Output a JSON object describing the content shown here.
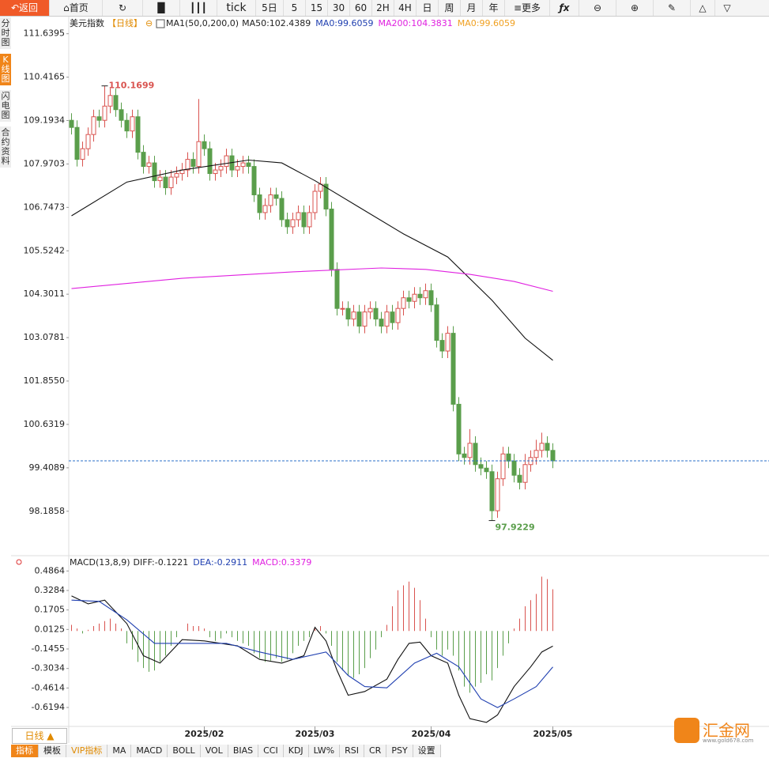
{
  "toolbar": {
    "items": [
      "返回",
      "首页",
      "tick",
      "5日",
      "5",
      "15",
      "30",
      "60",
      "2H",
      "4H",
      "日",
      "周",
      "月",
      "年",
      "更多"
    ]
  },
  "sidebar": {
    "tabs": [
      "分时图",
      "K线图",
      "闪电图",
      "合约资料"
    ]
  },
  "chart_data": [
    {
      "type": "candlestick",
      "title": "美元指数",
      "period": "【日线】",
      "indicator": "MA1(50,0,200,0)",
      "header": [
        {
          "text": "MA50:102.4389",
          "color": "#222222"
        },
        {
          "text": "MA0:99.6059",
          "color": "#1f3fb0"
        },
        {
          "text": "MA200:104.3831",
          "color": "#e020e0"
        },
        {
          "text": "MA0:99.6059",
          "color": "#f0a020"
        }
      ],
      "up_color": "#d9534f",
      "down_color": "#5a9e4b",
      "last_line_color": "#2a6fc9",
      "xlim": [
        -0.5,
        87.5
      ],
      "ylim": [
        97.0,
        112.1
      ],
      "yticks": [
        111.6395,
        110.4165,
        109.1934,
        107.9703,
        106.7473,
        105.5242,
        104.3011,
        103.0781,
        {
          "value": 101.855,
          "label": "101.8550"
        },
        100.6319,
        99.4089,
        98.1858
      ],
      "open": [
        109.2,
        109.0,
        108.1,
        108.4,
        108.8,
        109.3,
        109.2,
        109.6,
        109.9,
        109.5,
        109.2,
        108.9,
        109.3,
        108.3,
        107.9,
        108.0,
        107.5,
        107.6,
        107.3,
        107.6,
        107.7,
        107.8,
        108.1,
        107.9,
        108.6,
        108.4,
        107.7,
        107.8,
        107.9,
        108.2,
        107.8,
        107.9,
        108.0,
        107.9,
        107.1,
        106.6,
        106.8,
        107.1,
        107.0,
        106.4,
        106.2,
        106.4,
        106.6,
        106.2,
        106.6,
        107.2,
        107.4,
        106.7,
        105.0,
        103.9,
        103.9,
        103.6,
        103.8,
        103.4,
        103.8,
        103.9,
        103.6,
        103.4,
        103.8,
        103.5,
        103.9,
        104.2,
        104.1,
        104.3,
        104.2,
        104.4,
        104.0,
        103.0,
        102.7,
        103.2,
        101.2,
        99.8,
        99.7,
        100.1,
        99.5,
        99.4,
        99.3,
        98.2,
        99.1,
        99.8,
        99.6,
        99.2,
        99.0,
        99.5,
        99.7,
        99.9,
        100.1,
        99.9
      ],
      "high": [
        109.4,
        109.2,
        108.6,
        109.0,
        109.5,
        109.5,
        110.1699,
        110.1,
        110.1,
        109.7,
        109.4,
        109.5,
        109.5,
        108.5,
        108.2,
        108.2,
        107.8,
        107.8,
        107.8,
        107.9,
        108.0,
        108.3,
        108.3,
        109.8,
        108.8,
        108.6,
        108.0,
        108.1,
        108.4,
        108.4,
        108.1,
        108.2,
        108.2,
        108.1,
        107.3,
        107.0,
        107.3,
        107.3,
        107.2,
        106.6,
        106.6,
        106.8,
        106.8,
        106.8,
        107.4,
        107.6,
        107.6,
        106.9,
        105.2,
        104.1,
        104.1,
        104.0,
        104.0,
        104.0,
        104.1,
        104.1,
        103.8,
        104.0,
        104.0,
        104.1,
        104.4,
        104.4,
        104.5,
        104.5,
        104.6,
        104.6,
        104.2,
        103.2,
        103.4,
        103.4,
        101.4,
        100.0,
        100.5,
        100.3,
        99.7,
        99.6,
        99.5,
        99.3,
        100.0,
        100.0,
        99.8,
        99.4,
        99.8,
        99.9,
        100.2,
        100.4,
        100.3,
        100.1
      ],
      "low": [
        108.8,
        107.9,
        107.9,
        108.2,
        108.6,
        109.0,
        109.0,
        109.4,
        109.3,
        109.0,
        108.7,
        108.7,
        108.1,
        107.7,
        107.7,
        107.3,
        107.3,
        107.1,
        107.1,
        107.4,
        107.5,
        107.6,
        107.7,
        107.7,
        108.2,
        107.5,
        107.5,
        107.6,
        107.7,
        107.6,
        107.6,
        107.7,
        107.7,
        106.9,
        106.4,
        106.4,
        106.6,
        106.8,
        106.2,
        106.0,
        106.0,
        106.2,
        106.0,
        106.0,
        106.4,
        107.0,
        106.5,
        104.8,
        103.7,
        103.7,
        103.4,
        103.4,
        103.2,
        103.2,
        103.6,
        103.4,
        103.2,
        103.2,
        103.3,
        103.3,
        103.7,
        103.9,
        103.9,
        104.0,
        104.0,
        103.8,
        102.8,
        102.5,
        102.5,
        101.0,
        99.6,
        99.5,
        99.5,
        99.3,
        99.2,
        99.1,
        97.9229,
        98.0,
        98.9,
        99.4,
        99.0,
        98.8,
        98.8,
        99.3,
        99.5,
        99.7,
        99.7,
        99.4
      ],
      "close": [
        109.0,
        108.1,
        108.4,
        108.8,
        109.3,
        109.2,
        109.6,
        109.9,
        109.5,
        109.2,
        108.9,
        109.3,
        108.3,
        107.9,
        108.0,
        107.5,
        107.6,
        107.3,
        107.6,
        107.7,
        107.8,
        108.1,
        107.9,
        108.6,
        108.4,
        107.7,
        107.8,
        107.9,
        108.2,
        107.8,
        107.9,
        108.0,
        107.9,
        107.1,
        106.6,
        106.8,
        107.1,
        107.0,
        106.4,
        106.2,
        106.4,
        106.6,
        106.2,
        106.6,
        107.2,
        107.4,
        106.7,
        105.0,
        103.9,
        103.9,
        103.6,
        103.8,
        103.4,
        103.8,
        103.9,
        103.6,
        103.4,
        103.8,
        103.5,
        103.9,
        104.2,
        104.1,
        104.3,
        104.2,
        104.4,
        104.0,
        103.0,
        102.7,
        103.2,
        101.2,
        99.8,
        99.7,
        100.1,
        99.5,
        99.4,
        99.3,
        98.2,
        99.1,
        99.8,
        99.6,
        99.2,
        99.0,
        99.5,
        99.7,
        99.9,
        100.1,
        99.9,
        99.6059
      ],
      "high_label_color": "#d9534f",
      "low_label_color": "#5a9e4b",
      "series": [
        {
          "name": "MA50",
          "color": "#111111",
          "x": [
            0,
            10,
            20,
            32,
            38,
            44,
            52,
            60,
            68,
            76,
            82,
            87
          ],
          "values": [
            106.51,
            107.46,
            107.8,
            108.08,
            108.0,
            107.5,
            106.75,
            106.0,
            105.35,
            104.13,
            103.06,
            102.4389
          ]
        },
        {
          "name": "MA200",
          "color": "#e020e0",
          "x": [
            0,
            20,
            40,
            56,
            64,
            72,
            80,
            87
          ],
          "values": [
            104.46,
            104.75,
            104.93,
            105.04,
            105.0,
            104.86,
            104.66,
            104.3831
          ]
        }
      ]
    },
    {
      "type": "macd",
      "title": "MACD(13,8,9)",
      "header": [
        {
          "text": "DIFF:-0.1221",
          "color": "#222222"
        },
        {
          "text": "DEA:-0.2911",
          "color": "#1f3fb0"
        },
        {
          "text": "MACD:0.3379",
          "color": "#e020e0"
        }
      ],
      "xlim": [
        -0.5,
        87.5
      ],
      "ylim": [
        -0.76,
        0.61
      ],
      "yticks": [
        0.4864,
        0.3284,
        0.1705,
        0.0125,
        -0.1455,
        -0.3034,
        -0.4614,
        -0.6194
      ],
      "xticks": [
        {
          "value": 24,
          "label": "2025/02"
        },
        {
          "value": 44,
          "label": "2025/03"
        },
        {
          "value": 65,
          "label": "2025/04"
        },
        {
          "value": 87,
          "label": "2025/05"
        }
      ],
      "up_color": "#d9534f",
      "down_color": "#5a9e4b",
      "histogram": [
        0.05,
        0.02,
        -0.02,
        0.01,
        0.04,
        0.06,
        0.08,
        0.1,
        0.06,
        0.02,
        -0.1,
        -0.15,
        -0.25,
        -0.3,
        -0.33,
        -0.32,
        -0.25,
        -0.2,
        -0.12,
        -0.05,
        0.0,
        0.06,
        0.04,
        0.04,
        0.02,
        -0.05,
        -0.08,
        -0.06,
        -0.02,
        -0.05,
        -0.08,
        -0.1,
        -0.12,
        -0.18,
        -0.22,
        -0.25,
        -0.24,
        -0.22,
        -0.25,
        -0.23,
        -0.18,
        -0.12,
        -0.08,
        -0.05,
        0.02,
        0.04,
        -0.02,
        -0.12,
        -0.25,
        -0.32,
        -0.36,
        -0.38,
        -0.35,
        -0.3,
        -0.22,
        -0.15,
        -0.05,
        0.05,
        0.2,
        0.33,
        0.37,
        0.4,
        0.35,
        0.25,
        0.1,
        -0.05,
        -0.15,
        -0.2,
        -0.15,
        -0.2,
        -0.32,
        -0.45,
        -0.5,
        -0.45,
        -0.42,
        -0.35,
        -0.4,
        -0.3,
        -0.2,
        -0.1,
        0.02,
        0.1,
        0.2,
        0.25,
        0.3,
        0.44,
        0.42,
        0.3379
      ],
      "series": [
        {
          "name": "DIFF",
          "color": "#111111",
          "x": [
            0,
            3,
            6,
            10,
            13,
            16,
            20,
            24,
            30,
            34,
            38,
            42,
            44,
            46,
            48,
            50,
            53,
            57,
            59,
            61,
            63,
            65,
            68,
            70,
            72,
            75,
            77,
            80,
            83,
            85,
            87
          ],
          "values": [
            0.284,
            0.22,
            0.25,
            0.06,
            -0.2,
            -0.26,
            -0.07,
            -0.08,
            -0.12,
            -0.23,
            -0.26,
            -0.2,
            0.03,
            -0.08,
            -0.32,
            -0.52,
            -0.49,
            -0.39,
            -0.23,
            -0.1,
            -0.09,
            -0.2,
            -0.26,
            -0.52,
            -0.71,
            -0.74,
            -0.68,
            -0.45,
            -0.29,
            -0.17,
            -0.1221
          ]
        },
        {
          "name": "DEA",
          "color": "#1f3fb0",
          "x": [
            0,
            5,
            10,
            15,
            20,
            28,
            34,
            40,
            46,
            50,
            53,
            57,
            62,
            66,
            70,
            74,
            77,
            80,
            84,
            87
          ],
          "values": [
            0.25,
            0.24,
            0.09,
            -0.1,
            -0.1,
            -0.1,
            -0.17,
            -0.23,
            -0.17,
            -0.36,
            -0.45,
            -0.46,
            -0.26,
            -0.18,
            -0.29,
            -0.55,
            -0.62,
            -0.55,
            -0.45,
            -0.2911
          ]
        }
      ]
    }
  ],
  "footer": {
    "period_button": "日线 ▲",
    "tabs": [
      "指标",
      "模板",
      "VIP指标",
      "MA",
      "MACD",
      "BOLL",
      "VOL",
      "BIAS",
      "CCI",
      "KDJ",
      "LW%",
      "RSI",
      "CR",
      "PSY",
      "设置"
    ]
  },
  "logo": {
    "name": "汇金网",
    "url": "www.gold678.com"
  }
}
